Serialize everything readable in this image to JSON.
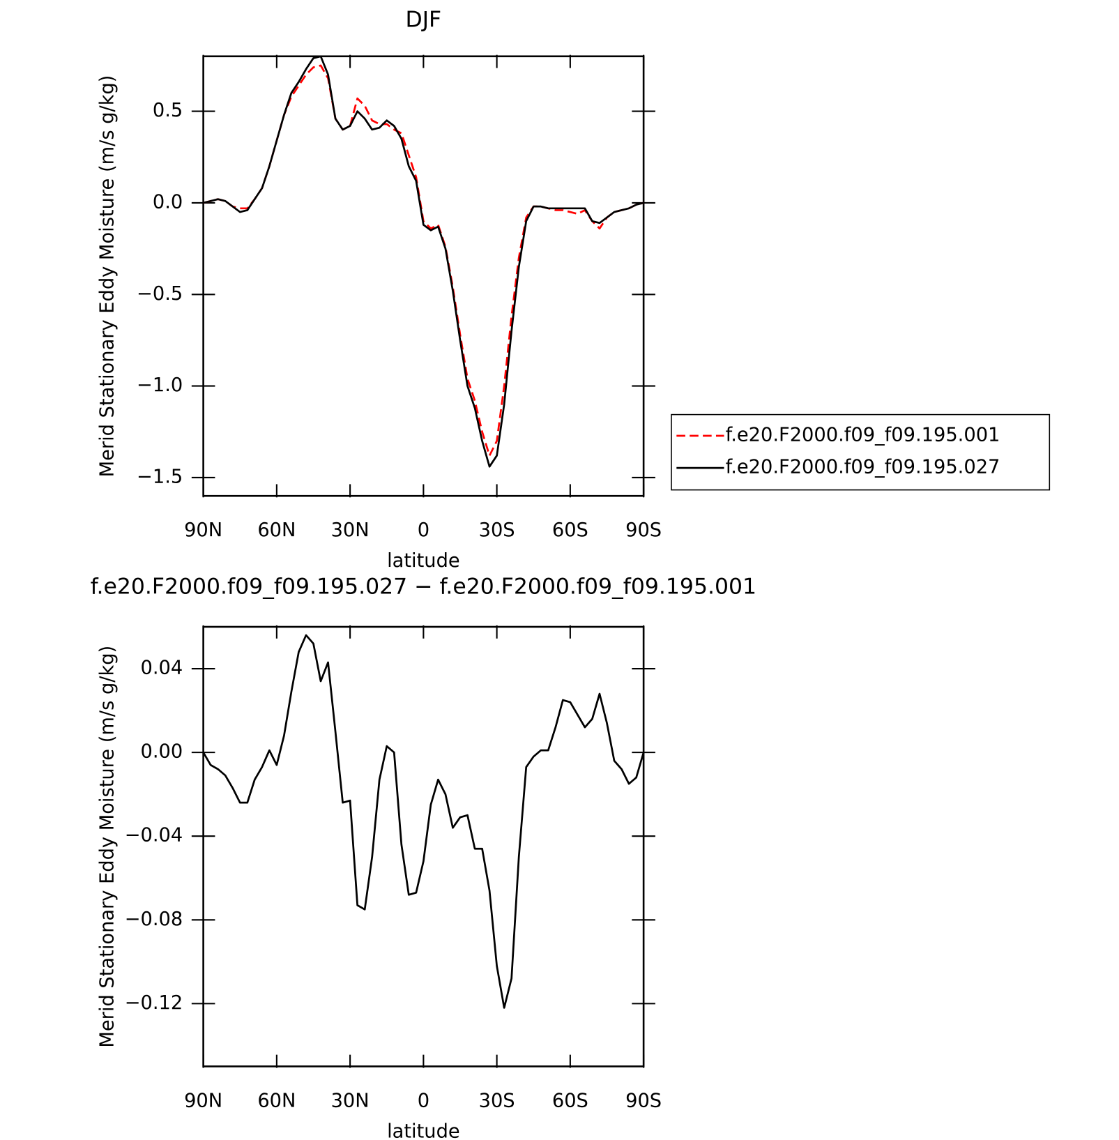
{
  "chart_data": [
    {
      "type": "line",
      "title": "DJF",
      "xlabel": "latitude",
      "ylabel": "Merid Stationary Eddy Moisture (m/s g/kg)",
      "x": [
        90,
        87,
        84,
        81,
        78,
        75,
        72,
        69,
        66,
        63,
        60,
        57,
        54,
        51,
        48,
        45,
        42,
        39,
        36,
        33,
        30,
        27,
        24,
        21,
        18,
        15,
        12,
        9,
        6,
        3,
        0,
        -3,
        -6,
        -9,
        -12,
        -15,
        -18,
        -21,
        -24,
        -27,
        -30,
        -33,
        -36,
        -39,
        -42,
        -45,
        -48,
        -51,
        -54,
        -57,
        -60,
        -63,
        -66,
        -69,
        -72,
        -75,
        -78,
        -81,
        -84,
        -87,
        -90
      ],
      "xlim": [
        90,
        -90
      ],
      "xticks": [
        {
          "value": 90,
          "label": "90N"
        },
        {
          "value": 60,
          "label": "60N"
        },
        {
          "value": 30,
          "label": "30N"
        },
        0,
        {
          "value": -30,
          "label": "30S"
        },
        {
          "value": -60,
          "label": "60S"
        },
        {
          "value": -90,
          "label": "90S"
        }
      ],
      "ylim": [
        -1.6,
        0.8
      ],
      "yticks": [
        0.5,
        {
          "value": 0,
          "label": "0.0"
        },
        {
          "value": -0.5,
          "label": "−0.5"
        },
        {
          "value": -1.0,
          "label": "−1.0"
        },
        {
          "value": -1.5,
          "label": "−1.5"
        }
      ],
      "legend": "right",
      "series": [
        {
          "name": "f.e20.F2000.f09_f09.195.001",
          "color": "#ff0000",
          "dash": "dashed",
          "values": [
            0.0,
            0.01,
            0.02,
            0.01,
            -0.02,
            -0.03,
            -0.03,
            0.02,
            0.08,
            0.2,
            0.34,
            0.48,
            0.58,
            0.64,
            0.7,
            0.74,
            0.75,
            0.68,
            0.46,
            0.4,
            0.42,
            0.57,
            0.53,
            0.45,
            0.43,
            0.43,
            0.4,
            0.38,
            0.26,
            0.14,
            -0.1,
            -0.14,
            -0.12,
            -0.24,
            -0.46,
            -0.72,
            -0.96,
            -1.08,
            -1.25,
            -1.38,
            -1.3,
            -1.0,
            -0.62,
            -0.3,
            -0.08,
            -0.02,
            -0.02,
            -0.03,
            -0.04,
            -0.04,
            -0.05,
            -0.06,
            -0.04,
            -0.1,
            -0.14,
            -0.08,
            -0.05,
            -0.04,
            -0.03,
            -0.01,
            0.0
          ]
        },
        {
          "name": "f.e20.F2000.f09_f09.195.027",
          "color": "#000000",
          "dash": "solid",
          "values": [
            0.0,
            0.01,
            0.02,
            0.01,
            -0.02,
            -0.05,
            -0.04,
            0.02,
            0.08,
            0.2,
            0.34,
            0.48,
            0.6,
            0.66,
            0.73,
            0.79,
            0.8,
            0.7,
            0.46,
            0.4,
            0.42,
            0.5,
            0.46,
            0.4,
            0.41,
            0.45,
            0.42,
            0.35,
            0.2,
            0.12,
            -0.12,
            -0.15,
            -0.13,
            -0.25,
            -0.48,
            -0.75,
            -1.0,
            -1.12,
            -1.3,
            -1.44,
            -1.38,
            -1.1,
            -0.7,
            -0.35,
            -0.1,
            -0.02,
            -0.02,
            -0.03,
            -0.03,
            -0.03,
            -0.03,
            -0.03,
            -0.03,
            -0.1,
            -0.11,
            -0.08,
            -0.05,
            -0.04,
            -0.03,
            -0.01,
            0.0
          ]
        }
      ]
    },
    {
      "type": "line",
      "title": "f.e20.F2000.f09_f09.195.027 − f.e20.F2000.f09_f09.195.001",
      "xlabel": "latitude",
      "ylabel": "Merid Stationary Eddy Moisture (m/s g/kg)",
      "x": [
        90,
        87,
        84,
        81,
        78,
        75,
        72,
        69,
        66,
        63,
        60,
        57,
        54,
        51,
        48,
        45,
        42,
        39,
        36,
        33,
        30,
        27,
        24,
        21,
        18,
        15,
        12,
        9,
        6,
        3,
        0,
        -3,
        -6,
        -9,
        -12,
        -15,
        -18,
        -21,
        -24,
        -27,
        -30,
        -33,
        -36,
        -39,
        -42,
        -45,
        -48,
        -51,
        -54,
        -57,
        -60,
        -63,
        -66,
        -69,
        -72,
        -75,
        -78,
        -81,
        -84,
        -87,
        -90
      ],
      "xlim": [
        90,
        -90
      ],
      "xticks": [
        {
          "value": 90,
          "label": "90N"
        },
        {
          "value": 60,
          "label": "60N"
        },
        {
          "value": 30,
          "label": "30N"
        },
        0,
        {
          "value": -30,
          "label": "30S"
        },
        {
          "value": -60,
          "label": "60S"
        },
        {
          "value": -90,
          "label": "90S"
        }
      ],
      "ylim": [
        -0.15,
        0.06
      ],
      "yticks": [
        0.04,
        {
          "value": 0,
          "label": "0.00"
        },
        {
          "value": -0.04,
          "label": "−0.04"
        },
        {
          "value": -0.08,
          "label": "−0.08"
        },
        {
          "value": -0.12,
          "label": "−0.12"
        }
      ],
      "series": [
        {
          "color": "#000000",
          "dash": "solid",
          "values": [
            0.0,
            -0.006,
            -0.008,
            -0.011,
            -0.017,
            -0.024,
            -0.024,
            -0.013,
            -0.007,
            0.001,
            -0.006,
            0.008,
            0.029,
            0.048,
            0.056,
            0.052,
            0.034,
            0.043,
            0.01,
            -0.024,
            -0.023,
            -0.073,
            -0.075,
            -0.05,
            -0.013,
            0.003,
            0.0,
            -0.044,
            -0.068,
            -0.067,
            -0.052,
            -0.025,
            -0.013,
            -0.02,
            -0.036,
            -0.031,
            -0.03,
            -0.046,
            -0.046,
            -0.066,
            -0.102,
            -0.122,
            -0.108,
            -0.05,
            -0.007,
            -0.002,
            0.001,
            0.001,
            0.012,
            0.025,
            0.024,
            0.018,
            0.012,
            0.016,
            0.028,
            0.014,
            -0.004,
            -0.008,
            -0.015,
            -0.012,
            0.0
          ]
        }
      ]
    }
  ]
}
